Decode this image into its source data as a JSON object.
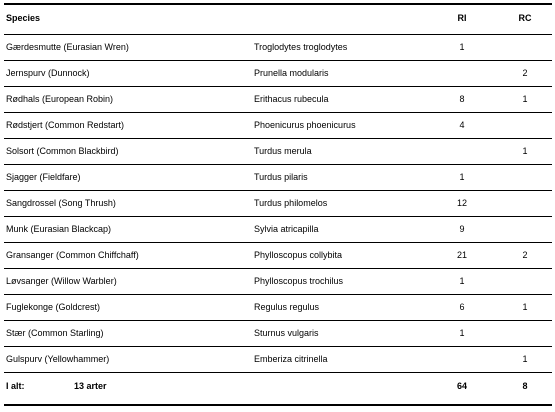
{
  "table": {
    "headers": {
      "species": "Species",
      "ri": "RI",
      "rc": "RC"
    },
    "rows": [
      {
        "common": "Gærdesmutte   (Eurasian Wren)",
        "latin": "Troglodytes troglodytes",
        "ri": "1",
        "rc": ""
      },
      {
        "common": "Jernspurv   (Dunnock)",
        "latin": "Prunella modularis",
        "ri": "",
        "rc": "2"
      },
      {
        "common": "Rødhals   (European Robin)",
        "latin": "Erithacus rubecula",
        "ri": "8",
        "rc": "1"
      },
      {
        "common": "Rødstjert   (Common Redstart)",
        "latin": "Phoenicurus phoenicurus",
        "ri": "4",
        "rc": ""
      },
      {
        "common": "Solsort   (Common Blackbird)",
        "latin": "Turdus merula",
        "ri": "",
        "rc": "1"
      },
      {
        "common": "Sjagger   (Fieldfare)",
        "latin": "Turdus pilaris",
        "ri": "1",
        "rc": ""
      },
      {
        "common": "Sangdrossel   (Song Thrush)",
        "latin": "Turdus philomelos",
        "ri": "12",
        "rc": ""
      },
      {
        "common": "Munk   (Eurasian Blackcap)",
        "latin": "Sylvia atricapilla",
        "ri": "9",
        "rc": ""
      },
      {
        "common": "Gransanger   (Common Chiffchaff)",
        "latin": "Phylloscopus collybita",
        "ri": "21",
        "rc": "2"
      },
      {
        "common": "Løvsanger   (Willow Warbler)",
        "latin": "Phylloscopus trochilus",
        "ri": "1",
        "rc": ""
      },
      {
        "common": "Fuglekonge   (Goldcrest)",
        "latin": "Regulus regulus",
        "ri": "6",
        "rc": "1"
      },
      {
        "common": "Stær   (Common Starling)",
        "latin": "Sturnus vulgaris",
        "ri": "1",
        "rc": ""
      },
      {
        "common": "Gulspurv   (Yellowhammer)",
        "latin": "Emberiza citrinella",
        "ri": "",
        "rc": "1"
      }
    ],
    "total": {
      "label": "I alt:",
      "count": "13 arter",
      "ri": "64",
      "rc": "8"
    }
  }
}
